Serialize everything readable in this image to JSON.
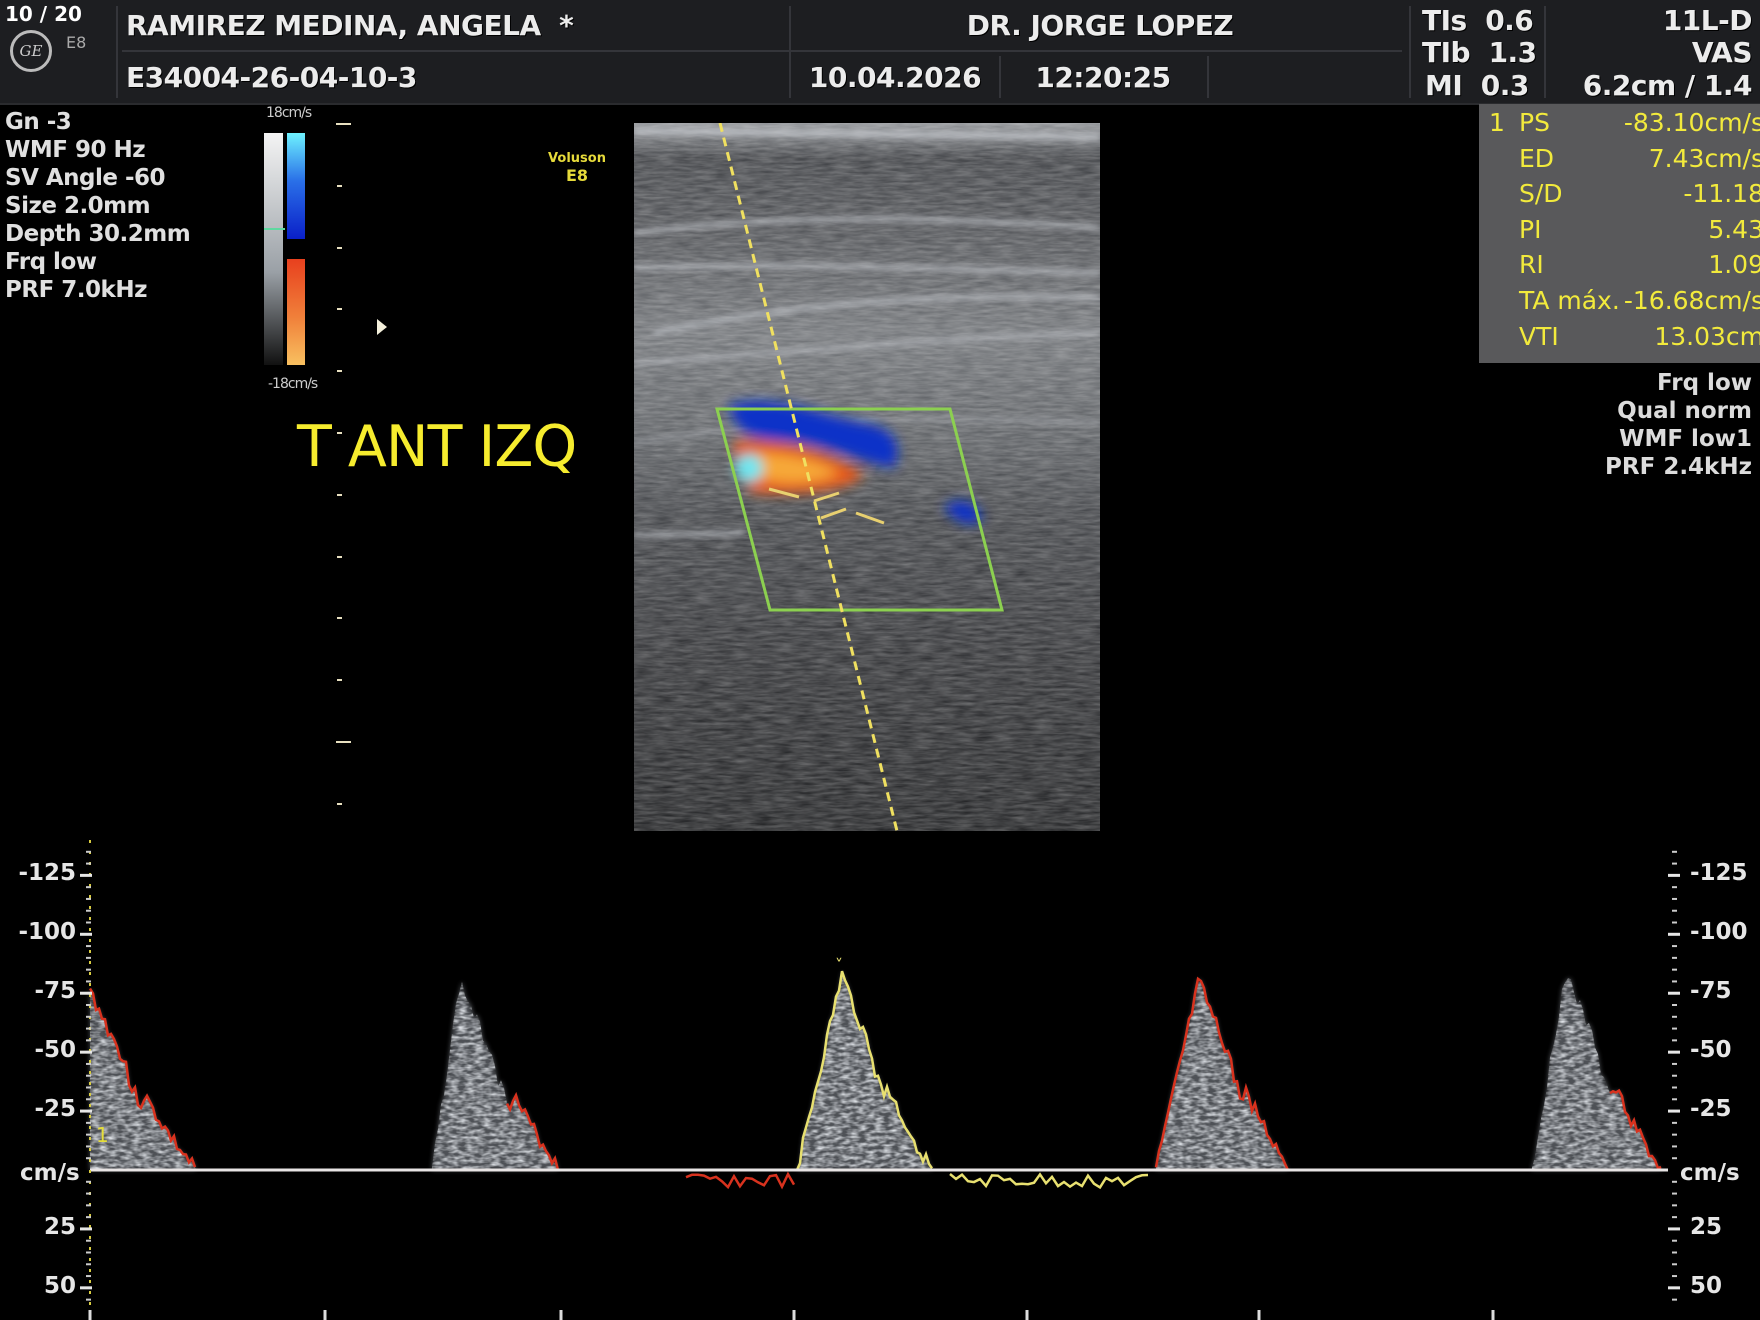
{
  "header": {
    "image_counter": "10 / 20",
    "logo_text": "GE",
    "model_small": "E8",
    "patient_name": "RAMIREZ MEDINA, ANGELA",
    "patient_flag": "*",
    "patient_id": "E34004-26-04-10-3",
    "physician": "DR. JORGE LOPEZ",
    "date": "10.04.2026",
    "time": "12:20:25",
    "safety": [
      {
        "label": "TIs",
        "value": "0.6"
      },
      {
        "label": "TIb",
        "value": "1.3"
      },
      {
        "label": "MI",
        "value": "0.3"
      }
    ],
    "probe": "11L-D",
    "preset": "VAS",
    "depth_zoom": "6.2cm / 1.4"
  },
  "left_params": [
    "Gn  -3",
    "WMF 90 Hz",
    "SV Angle -60",
    "Size  2.0mm",
    "Depth 30.2mm",
    "Frq low",
    "PRF  7.0kHz"
  ],
  "color_scale": {
    "top": "18cm/s",
    "bottom": "-18cm/s"
  },
  "watermark": {
    "line1": "Voluson",
    "line2": "E8"
  },
  "annotation": "T ANT IZQ",
  "measurements": {
    "index": "1",
    "rows": [
      {
        "label": "PS",
        "value": "-83.10cm/s"
      },
      {
        "label": "ED",
        "value": "7.43cm/s"
      },
      {
        "label": "S/D",
        "value": "-11.18"
      },
      {
        "label": "PI",
        "value": "5.43"
      },
      {
        "label": "RI",
        "value": "1.09"
      },
      {
        "label": "TA máx.",
        "value": "-16.68cm/s"
      },
      {
        "label": "VTI",
        "value": "13.03cm"
      }
    ]
  },
  "doppler_params": [
    "Frq low",
    "Qual norm",
    "WMF low1",
    "PRF  2.4kHz"
  ],
  "spectrum": {
    "unit": "cm/s",
    "ticks": [
      "-125",
      "-100",
      "-75",
      "-50",
      "-25",
      "25",
      "50"
    ],
    "tick_values": [
      -125,
      -100,
      -75,
      -50,
      -25,
      25,
      50
    ],
    "cursor_label": "1"
  },
  "colors": {
    "accent_yellow": "#f2ea3c",
    "trace_red": "#d8321e",
    "color_box": "#8cd050",
    "panel": "#59595b"
  }
}
